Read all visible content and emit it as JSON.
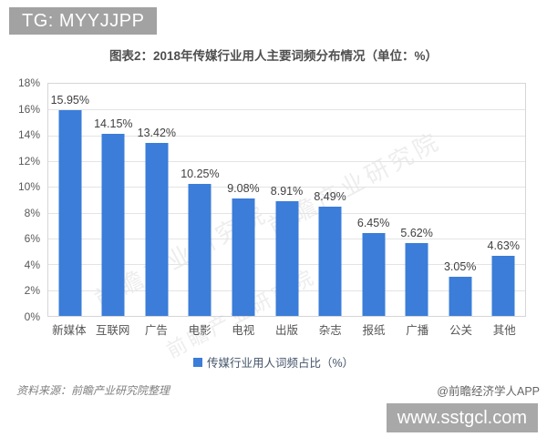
{
  "header": {
    "tg_badge": "TG: MYYJJPP"
  },
  "title": "图表2：2018年传媒行业用人主要词频分布情况（单位：%）",
  "chart_data": {
    "type": "bar",
    "categories": [
      "新媒体",
      "互联网",
      "广告",
      "电影",
      "电视",
      "出版",
      "杂志",
      "报纸",
      "广播",
      "公关",
      "其他"
    ],
    "values": [
      15.95,
      14.15,
      13.42,
      10.25,
      9.08,
      8.91,
      8.49,
      6.45,
      5.62,
      3.05,
      4.63
    ],
    "value_labels": [
      "15.95%",
      "14.15%",
      "13.42%",
      "10.25%",
      "9.08%",
      "8.91%",
      "8.49%",
      "6.45%",
      "5.62%",
      "3.05%",
      "4.63%"
    ],
    "title": "图表2：2018年传媒行业用人主要词频分布情况（单位：%）",
    "xlabel": "",
    "ylabel": "",
    "ylim": [
      0,
      18
    ],
    "ytick_step": 2,
    "ytick_labels": [
      "0%",
      "2%",
      "4%",
      "6%",
      "8%",
      "10%",
      "12%",
      "14%",
      "16%",
      "18%"
    ],
    "grid": true,
    "legend": {
      "label": "传媒行业用人词频占比（%）",
      "position": "bottom"
    },
    "bar_color": "#3b7dd8"
  },
  "watermark": {
    "text": "前瞻产业研究院"
  },
  "footer": {
    "source": "资料来源：前瞻产业研究院整理",
    "credit": "@前瞻经济学人APP"
  },
  "badges": {
    "site": "www.sstgcl.com"
  },
  "colors": {
    "bar": "#3b7dd8",
    "gridline": "#e4e4e4",
    "axis_text": "#595959",
    "badge_bg": "#a8a8a8",
    "legend_text": "#44546a"
  }
}
